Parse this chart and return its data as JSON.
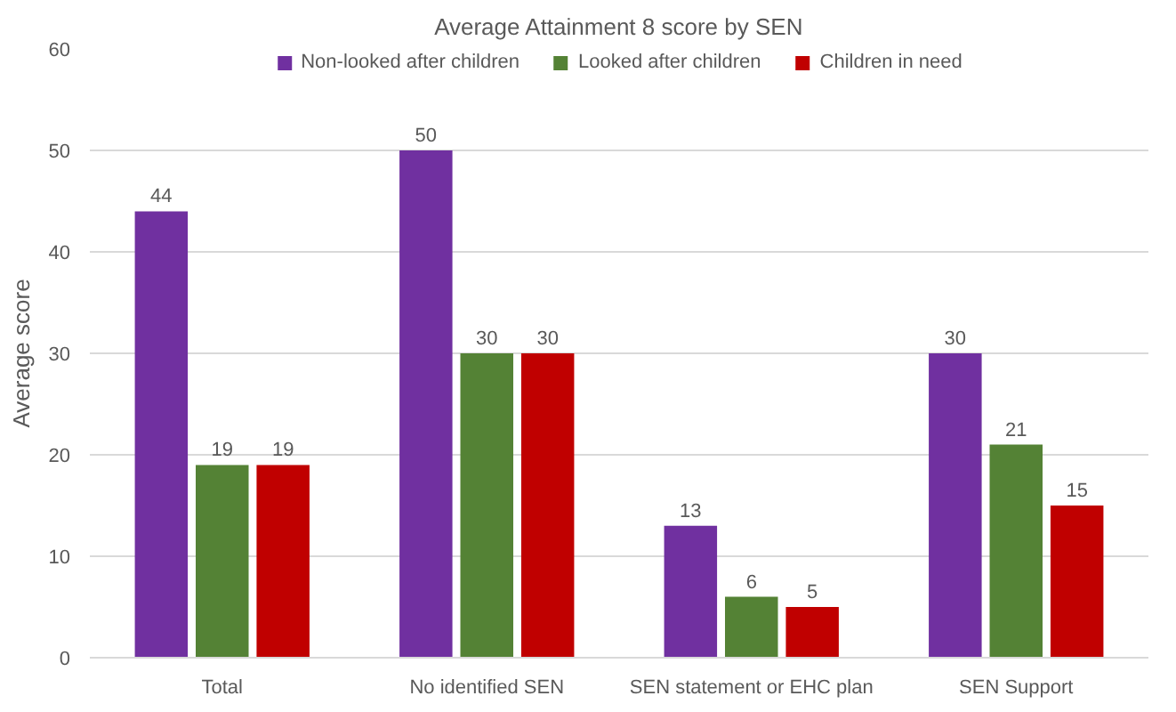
{
  "chart_data": {
    "type": "bar",
    "title": "Average Attainment 8 score by SEN",
    "ylabel": "Average score",
    "categories": [
      "Total",
      "No identified SEN",
      "SEN statement or EHC plan",
      "SEN Support"
    ],
    "series": [
      {
        "name": "Non-looked after children",
        "color": "#7030a0",
        "values": [
          44,
          50,
          13,
          30
        ]
      },
      {
        "name": "Looked after children",
        "color": "#548235",
        "values": [
          19,
          30,
          6,
          21
        ]
      },
      {
        "name": "Children in need",
        "color": "#c00000",
        "values": [
          19,
          30,
          5,
          15
        ]
      }
    ],
    "ylim": [
      0,
      60
    ],
    "yticks": [
      0,
      10,
      20,
      30,
      40,
      50,
      60
    ],
    "grid": "y",
    "legend": "top",
    "data_labels": true
  }
}
